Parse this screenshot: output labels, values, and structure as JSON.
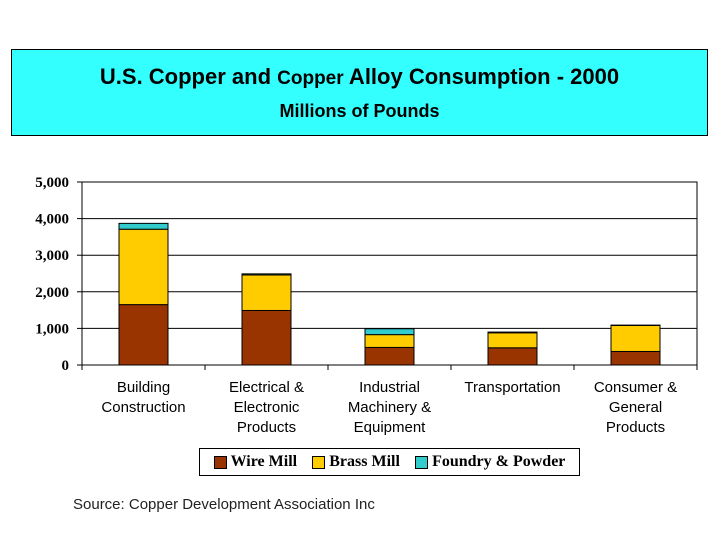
{
  "header": {
    "title_part1": "U.S. Copper and ",
    "title_part2": "Copper",
    "title_part3": " Alloy Consumption - 2000",
    "subtitle": "Millions of Pounds"
  },
  "colors": {
    "title_background": "#33ffff",
    "wire_mill": "#993300",
    "brass_mill": "#ffcc00",
    "foundry_powder": "#33cccc"
  },
  "legend": {
    "items": [
      {
        "label": "Wire Mill",
        "color": "#993300"
      },
      {
        "label": "Brass Mill",
        "color": "#ffcc00"
      },
      {
        "label": "Foundry & Powder",
        "color": "#33cccc"
      }
    ]
  },
  "source": "Source: Copper Development Association Inc",
  "chart_data": {
    "type": "bar",
    "stacked": true,
    "title": "U.S. Copper and Copper Alloy Consumption - 2000",
    "subtitle": "Millions of Pounds",
    "categories": [
      [
        "Building",
        "Construction"
      ],
      [
        "Electrical &",
        "Electronic",
        "Products"
      ],
      [
        "Industrial",
        "Machinery &",
        "Equipment"
      ],
      [
        "Transportation"
      ],
      [
        "Consumer &",
        "General",
        "Products"
      ]
    ],
    "series": [
      {
        "name": "Wire Mill",
        "values": [
          1650,
          1490,
          480,
          470,
          370
        ]
      },
      {
        "name": "Brass Mill",
        "values": [
          2060,
          970,
          350,
          410,
          710
        ]
      },
      {
        "name": "Foundry & Powder",
        "values": [
          160,
          30,
          160,
          20,
          10
        ]
      }
    ],
    "ylim": [
      0,
      5000
    ],
    "yticks": [
      0,
      1000,
      2000,
      3000,
      4000,
      5000
    ],
    "ytick_labels": [
      "0",
      "1,000",
      "2,000",
      "3,000",
      "4,000",
      "5,000"
    ],
    "grid": true,
    "legend_position": "bottom"
  }
}
